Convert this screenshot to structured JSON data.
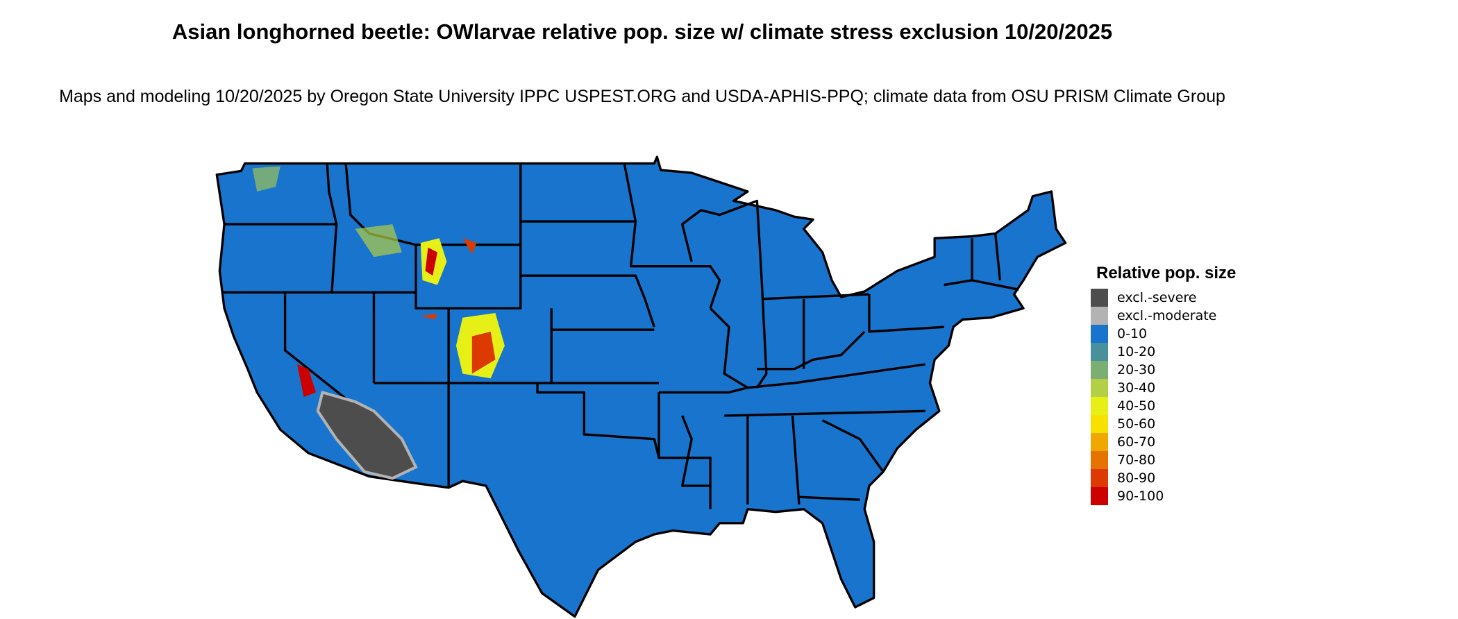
{
  "title": "Asian longhorned beetle: OWlarvae relative pop. size w/ climate stress exclusion 10/20/2025",
  "subtitle": "Maps and modeling 10/20/2025 by Oregon State University IPPC USPEST.ORG and USDA-APHIS-PPQ; climate data from OSU PRISM Climate Group",
  "map": {
    "region": "Contiguous United States",
    "base_color": "#1874CD",
    "border_color": "#000000"
  },
  "legend": {
    "title": "Relative pop. size",
    "items": [
      {
        "label": "excl.-severe",
        "color": "#4D4D4D"
      },
      {
        "label": "excl.-moderate",
        "color": "#B3B3B3"
      },
      {
        "label": "0-10",
        "color": "#1874CD"
      },
      {
        "label": "10-20",
        "color": "#48919C"
      },
      {
        "label": "20-30",
        "color": "#7BAF72"
      },
      {
        "label": "30-40",
        "color": "#B2CF46"
      },
      {
        "label": "40-50",
        "color": "#E6F017"
      },
      {
        "label": "50-60",
        "color": "#F8E000"
      },
      {
        "label": "60-70",
        "color": "#F0A800"
      },
      {
        "label": "70-80",
        "color": "#E67300"
      },
      {
        "label": "80-90",
        "color": "#DC3A00"
      },
      {
        "label": "90-100",
        "color": "#CD0000"
      }
    ]
  }
}
